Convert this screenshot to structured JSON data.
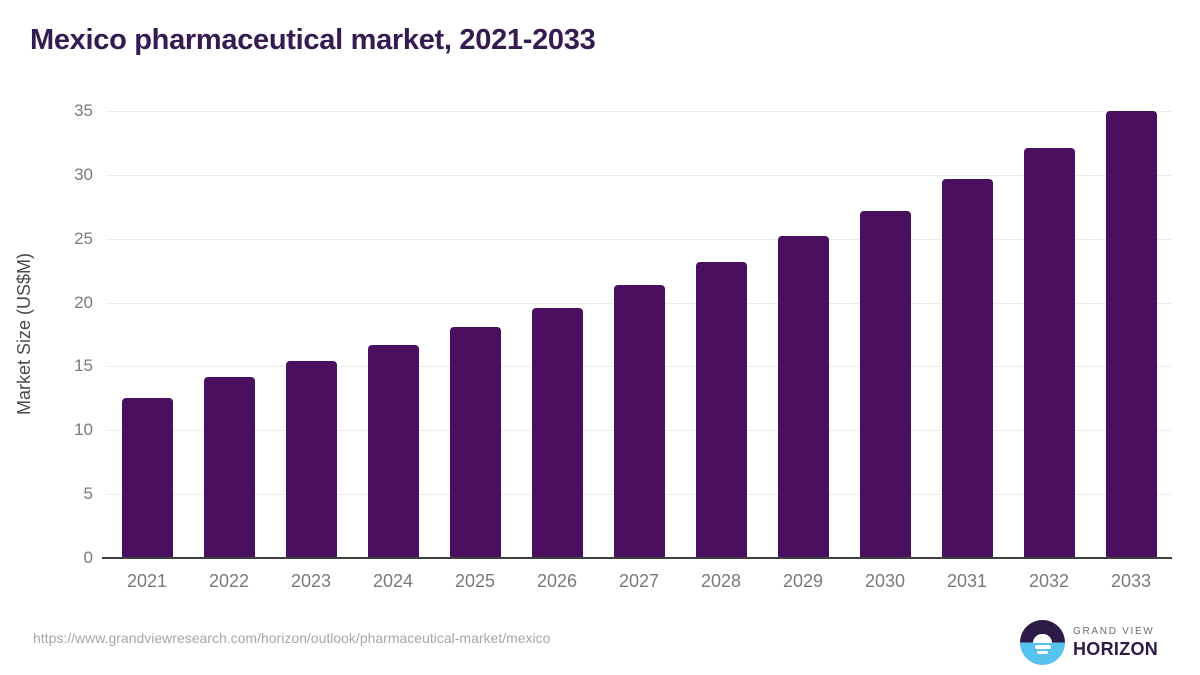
{
  "title": "Mexico pharmaceutical market, 2021-2033",
  "chart_data": {
    "type": "bar",
    "title": "Mexico pharmaceutical market, 2021-2033",
    "categories": [
      "2021",
      "2022",
      "2023",
      "2024",
      "2025",
      "2026",
      "2027",
      "2028",
      "2029",
      "2030",
      "2031",
      "2032",
      "2033"
    ],
    "values": [
      12.5,
      14.2,
      15.4,
      16.7,
      18.1,
      19.6,
      21.4,
      23.2,
      25.2,
      27.2,
      29.7,
      32.1,
      35.0
    ],
    "xlabel": "",
    "ylabel": "Market Size (US$M)",
    "ylim": [
      0,
      35
    ],
    "yticks": [
      0,
      5,
      10,
      15,
      20,
      25,
      30,
      35
    ],
    "grid": true,
    "legend": false,
    "bar_color": "#4a0f5e"
  },
  "footer": {
    "url": "https://www.grandviewresearch.com/horizon/outlook/pharmaceutical-market/mexico",
    "logo_top": "GRAND VIEW",
    "logo_bottom": "HORIZON"
  },
  "colors": {
    "bar": "#4a0f5e",
    "title": "#351b52",
    "grid": "#ebebeb",
    "axis_line": "#3f3f3f",
    "tick_label": "#7a7a7a",
    "axis_title": "#4a4a4a",
    "url": "#a7a7a7",
    "logo_blue": "#57c2ee",
    "logo_dark": "#2e1a47",
    "logo_gray": "#6e6e6e"
  },
  "icons": {
    "logo_icon": "horizon-sun-over-water-icon"
  }
}
